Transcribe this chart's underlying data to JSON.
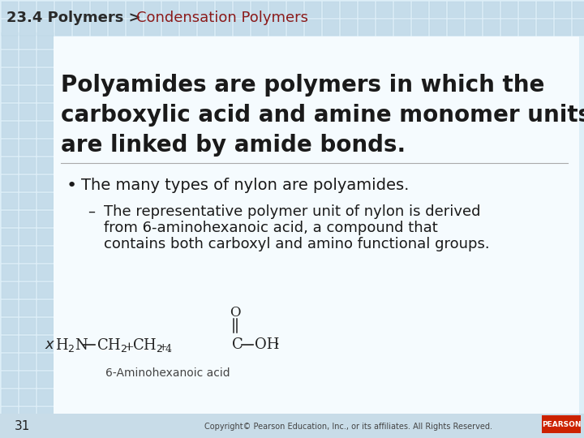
{
  "header_bold": "23.4 Polymers > ",
  "header_red": "Condensation Polymers",
  "header_bold_color": "#2a2a2a",
  "header_red_color": "#8B1A1A",
  "main_text_line1": "Polyamides are polymers in which the",
  "main_text_line2": "carboxylic acid and amine monomer units",
  "main_text_line3": "are linked by amide bonds.",
  "bullet_text": "The many types of nylon are polyamides.",
  "sub_bullet_line1": "The representative polymer unit of nylon is derived",
  "sub_bullet_line2": "from 6-aminohexanoic acid, a compound that",
  "sub_bullet_line3": "contains both carboxyl and amino functional groups.",
  "page_number": "31",
  "copyright_text": "Copyright© Pearson Education, Inc., or its affiliates. All Rights Reserved.",
  "bg_top_color": "#c8dce8",
  "bg_bottom_color": "#e0eef5",
  "content_bg_color": "#f0f8fc",
  "text_color": "#1a1a1a",
  "formula_label": "6-Aminohexanoic acid",
  "grid_color": "#d8eaf4",
  "grid_border_color": "#c0d8e8"
}
